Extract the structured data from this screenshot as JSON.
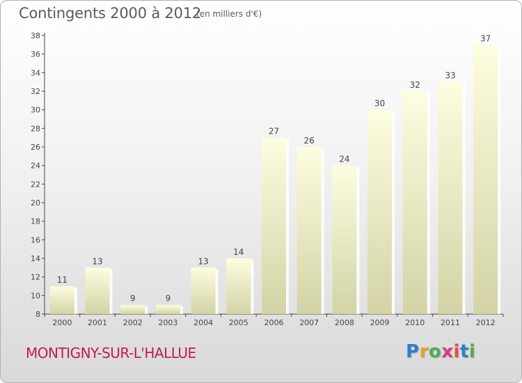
{
  "header": {
    "title": "Contingents 2000 à 2012",
    "subtitle": "(en milliers d'€)"
  },
  "footer": {
    "place": "MONTIGNY-SUR-L'HALLUE",
    "logo_text": "Proxiti",
    "logo_colors": [
      "#2a7fd4",
      "#e8a020",
      "#4caf50",
      "#d63a8a",
      "#e84c3d",
      "#2a7fd4",
      "#4caf50"
    ]
  },
  "chart_data": {
    "type": "bar",
    "categories": [
      "2000",
      "2001",
      "2002",
      "2003",
      "2004",
      "2005",
      "2006",
      "2007",
      "2008",
      "2009",
      "2010",
      "2011",
      "2012"
    ],
    "values": [
      11,
      13,
      9,
      9,
      13,
      14,
      27,
      26,
      24,
      30,
      32,
      33,
      37
    ],
    "ylim": [
      8,
      38
    ],
    "yticks": [
      8,
      10,
      12,
      14,
      16,
      18,
      20,
      22,
      24,
      26,
      28,
      30,
      32,
      34,
      36,
      38
    ],
    "grid": false,
    "bar_color_top": "#fdfde0",
    "bar_color_bottom": "#d3d3a6"
  }
}
